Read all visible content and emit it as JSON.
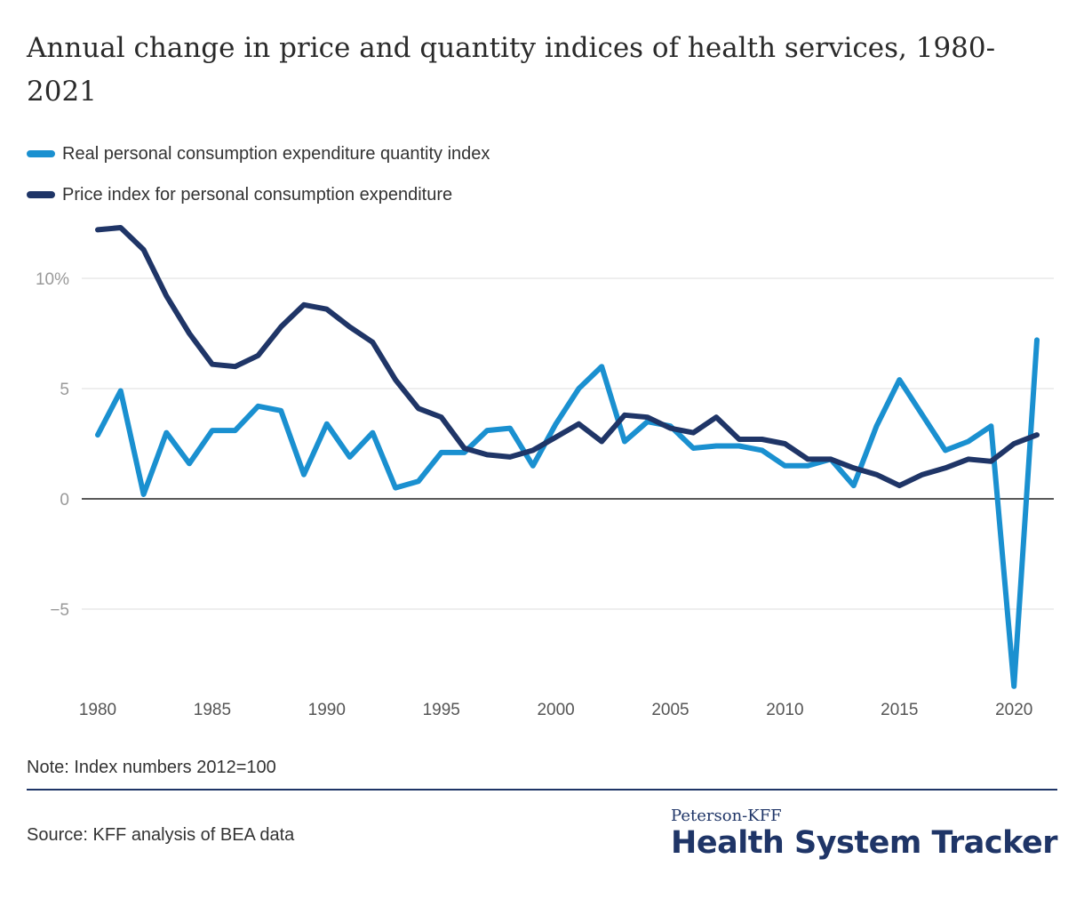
{
  "header": {
    "title": "Annual change in price and quantity indices of health services, 1980-2021"
  },
  "legend": {
    "items": [
      {
        "label": "Real personal consumption expenditure quantity index",
        "color": "#1a90d0"
      },
      {
        "label": "Price index for personal consumption expenditure",
        "color": "#1f3567"
      }
    ]
  },
  "chart_data": {
    "type": "line",
    "x": [
      1980,
      1981,
      1982,
      1983,
      1984,
      1985,
      1986,
      1987,
      1988,
      1989,
      1990,
      1991,
      1992,
      1993,
      1994,
      1995,
      1996,
      1997,
      1998,
      1999,
      2000,
      2001,
      2002,
      2003,
      2004,
      2005,
      2006,
      2007,
      2008,
      2009,
      2010,
      2011,
      2012,
      2013,
      2014,
      2015,
      2016,
      2017,
      2018,
      2019,
      2020,
      2021
    ],
    "series": [
      {
        "name": "Real personal consumption expenditure quantity index",
        "color": "#1a90d0",
        "values": [
          2.9,
          4.9,
          0.2,
          3.0,
          1.6,
          3.1,
          3.1,
          4.2,
          4.0,
          1.1,
          3.4,
          1.9,
          3.0,
          0.5,
          0.8,
          2.1,
          2.1,
          3.1,
          3.2,
          1.5,
          3.4,
          5.0,
          6.0,
          2.6,
          3.5,
          3.3,
          2.3,
          2.4,
          2.4,
          2.2,
          1.5,
          1.5,
          1.8,
          0.6,
          3.3,
          5.4,
          3.8,
          2.2,
          2.6,
          3.3,
          -8.5,
          7.2
        ]
      },
      {
        "name": "Price index for personal consumption expenditure",
        "color": "#1f3567",
        "values": [
          12.2,
          12.3,
          11.3,
          9.2,
          7.5,
          6.1,
          6.0,
          6.5,
          7.8,
          8.8,
          8.6,
          7.8,
          7.1,
          5.4,
          4.1,
          3.7,
          2.3,
          2.0,
          1.9,
          2.2,
          2.8,
          3.4,
          2.6,
          3.8,
          3.7,
          3.2,
          3.0,
          3.7,
          2.7,
          2.7,
          2.5,
          1.8,
          1.8,
          1.4,
          1.1,
          0.6,
          1.1,
          1.4,
          1.8,
          1.7,
          2.5,
          2.9
        ]
      }
    ],
    "y_ticks": [
      {
        "value": 10,
        "label": "10%"
      },
      {
        "value": 5,
        "label": "5"
      },
      {
        "value": 0,
        "label": "0"
      },
      {
        "value": -5,
        "label": "−5"
      }
    ],
    "x_ticks": [
      1980,
      1985,
      1990,
      1995,
      2000,
      2005,
      2010,
      2015,
      2020
    ],
    "xlim": [
      1980,
      2021
    ],
    "ylim": [
      -9.5,
      12.5
    ],
    "grid": true
  },
  "footer": {
    "note": "Note: Index numbers 2012=100",
    "source": "Source: KFF analysis of BEA data",
    "brand_top": "Peterson-KFF",
    "brand_main": "Health System Tracker"
  }
}
